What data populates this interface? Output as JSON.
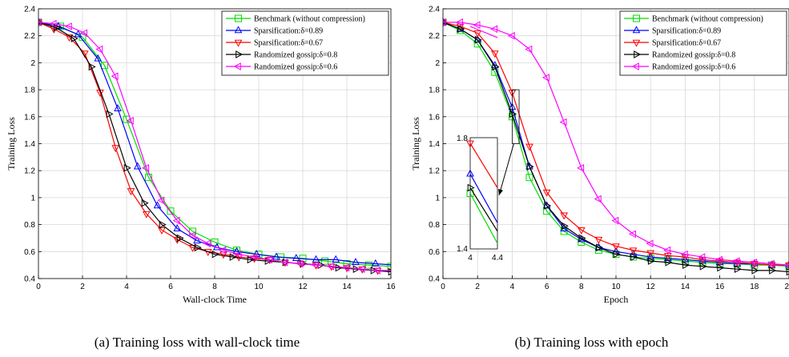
{
  "captions": {
    "a": "(a) Training loss with wall-clock time",
    "b": "(b) Training loss with epoch"
  },
  "chart_data": [
    {
      "type": "line",
      "xlabel": "Wall-clock Time",
      "ylabel": "Training Loss",
      "xlim": [
        0,
        16
      ],
      "ylim": [
        0.4,
        2.4
      ],
      "xticks": [
        0,
        2,
        4,
        6,
        8,
        10,
        12,
        14,
        16
      ],
      "yticks": [
        0.4,
        0.6,
        0.8,
        1,
        1.2,
        1.4,
        1.6,
        1.8,
        2,
        2.2,
        2.4
      ],
      "grid": true,
      "legend_position": "top-right",
      "series": [
        {
          "name": "Benchmark (without compression)",
          "color": "#00dd00",
          "marker": "square",
          "x": [
            0,
            1,
            2,
            3,
            4,
            5,
            6,
            7,
            8,
            9,
            10,
            11,
            12,
            13,
            14,
            15,
            16
          ],
          "y": [
            2.3,
            2.27,
            2.19,
            1.98,
            1.58,
            1.15,
            0.9,
            0.75,
            0.67,
            0.61,
            0.58,
            0.56,
            0.55,
            0.53,
            0.51,
            0.5,
            0.49
          ]
        },
        {
          "name": "Sparsification:δ=0.89",
          "color": "#0000ff",
          "marker": "triangle-up",
          "x": [
            0,
            0.9,
            1.8,
            2.7,
            3.6,
            4.5,
            5.4,
            6.3,
            7.2,
            8.1,
            9.0,
            9.9,
            10.8,
            11.7,
            12.6,
            13.5,
            14.4,
            15.3,
            16.2
          ],
          "y": [
            2.3,
            2.27,
            2.21,
            2.03,
            1.66,
            1.23,
            0.94,
            0.77,
            0.68,
            0.63,
            0.6,
            0.58,
            0.56,
            0.55,
            0.54,
            0.54,
            0.52,
            0.51,
            0.5
          ]
        },
        {
          "name": "Sparsification:δ=0.67",
          "color": "#ff0000",
          "marker": "triangle-down",
          "x": [
            0,
            0.7,
            1.4,
            2.1,
            2.8,
            3.5,
            4.2,
            4.9,
            5.6,
            6.3,
            7.0,
            7.7,
            8.4,
            9.1,
            9.8,
            10.5,
            11.2,
            11.9,
            12.6,
            13.3,
            14.0,
            14.7,
            15.4,
            16.1
          ],
          "y": [
            2.3,
            2.25,
            2.19,
            2.07,
            1.78,
            1.37,
            1.05,
            0.88,
            0.76,
            0.69,
            0.63,
            0.6,
            0.58,
            0.56,
            0.55,
            0.54,
            0.52,
            0.51,
            0.5,
            0.49,
            0.48,
            0.47,
            0.46,
            0.45
          ]
        },
        {
          "name": "Randomized gossip:δ=0.8",
          "color": "#000000",
          "marker": "triangle-right",
          "x": [
            0,
            0.8,
            1.6,
            2.4,
            3.2,
            4.0,
            4.8,
            5.6,
            6.4,
            7.2,
            8.0,
            8.8,
            9.6,
            10.4,
            11.2,
            12.0,
            12.8,
            13.6,
            14.4,
            15.2,
            16.0
          ],
          "y": [
            2.3,
            2.26,
            2.18,
            1.97,
            1.62,
            1.22,
            0.96,
            0.8,
            0.7,
            0.63,
            0.58,
            0.56,
            0.54,
            0.53,
            0.52,
            0.51,
            0.5,
            0.48,
            0.47,
            0.46,
            0.45
          ]
        },
        {
          "name": "Randomized gossip:δ=0.6",
          "color": "#ff00ff",
          "marker": "triangle-left",
          "x": [
            0,
            0.7,
            1.4,
            2.1,
            2.8,
            3.5,
            4.2,
            4.9,
            5.6,
            6.3,
            7.0,
            7.7,
            8.4,
            9.1,
            9.8,
            10.5,
            11.2,
            11.9,
            12.6,
            13.3,
            14.0,
            14.7,
            15.4,
            16.1
          ],
          "y": [
            2.3,
            2.29,
            2.27,
            2.22,
            2.1,
            1.9,
            1.57,
            1.22,
            0.98,
            0.83,
            0.72,
            0.66,
            0.61,
            0.58,
            0.56,
            0.54,
            0.52,
            0.51,
            0.5,
            0.49,
            0.48,
            0.47,
            0.46,
            0.46
          ]
        }
      ]
    },
    {
      "type": "line",
      "xlabel": "Epoch",
      "ylabel": "Training Loss",
      "xlim": [
        0,
        20
      ],
      "ylim": [
        0.4,
        2.4
      ],
      "xticks": [
        0,
        2,
        4,
        6,
        8,
        10,
        12,
        14,
        16,
        18,
        20
      ],
      "yticks": [
        0.4,
        0.6,
        0.8,
        1,
        1.2,
        1.4,
        1.6,
        1.8,
        2,
        2.2,
        2.4
      ],
      "grid": true,
      "legend_position": "top-right",
      "series": [
        {
          "name": "Benchmark (without compression)",
          "color": "#00dd00",
          "marker": "square",
          "x": [
            0,
            1,
            2,
            3,
            4,
            5,
            6,
            7,
            8,
            9,
            10,
            11,
            12,
            13,
            14,
            15,
            16,
            17,
            18,
            19,
            20
          ],
          "y": [
            2.3,
            2.24,
            2.14,
            1.93,
            1.6,
            1.15,
            0.9,
            0.75,
            0.67,
            0.61,
            0.58,
            0.56,
            0.55,
            0.54,
            0.53,
            0.52,
            0.51,
            0.51,
            0.5,
            0.5,
            0.49
          ]
        },
        {
          "name": "Sparsification:δ=0.89",
          "color": "#0000ff",
          "marker": "triangle-up",
          "x": [
            0,
            1,
            2,
            3,
            4,
            5,
            6,
            7,
            8,
            9,
            10,
            11,
            12,
            13,
            14,
            15,
            16,
            17,
            18,
            19,
            20
          ],
          "y": [
            2.3,
            2.25,
            2.17,
            1.98,
            1.67,
            1.23,
            0.94,
            0.77,
            0.69,
            0.63,
            0.6,
            0.58,
            0.56,
            0.55,
            0.54,
            0.53,
            0.52,
            0.51,
            0.51,
            0.5,
            0.5
          ]
        },
        {
          "name": "Sparsification:δ=0.67",
          "color": "#ff0000",
          "marker": "triangle-down",
          "x": [
            0,
            1,
            2,
            3,
            4,
            5,
            6,
            7,
            8,
            9,
            10,
            11,
            12,
            13,
            14,
            15,
            16,
            17,
            18,
            19,
            20
          ],
          "y": [
            2.3,
            2.27,
            2.22,
            2.07,
            1.78,
            1.38,
            1.04,
            0.87,
            0.76,
            0.69,
            0.64,
            0.61,
            0.59,
            0.57,
            0.56,
            0.54,
            0.53,
            0.52,
            0.51,
            0.5,
            0.5
          ]
        },
        {
          "name": "Randomized gossip:δ=0.8",
          "color": "#000000",
          "marker": "triangle-right",
          "x": [
            0,
            1,
            2,
            3,
            4,
            5,
            6,
            7,
            8,
            9,
            10,
            11,
            12,
            13,
            14,
            15,
            16,
            17,
            18,
            19,
            20
          ],
          "y": [
            2.3,
            2.25,
            2.17,
            1.97,
            1.62,
            1.23,
            0.94,
            0.79,
            0.7,
            0.63,
            0.58,
            0.56,
            0.53,
            0.52,
            0.5,
            0.49,
            0.48,
            0.47,
            0.46,
            0.46,
            0.45
          ]
        },
        {
          "name": "Randomized gossip:δ=0.6",
          "color": "#ff00ff",
          "marker": "triangle-left",
          "x": [
            0,
            1,
            2,
            3,
            4,
            5,
            6,
            7,
            8,
            9,
            10,
            11,
            12,
            13,
            14,
            15,
            16,
            17,
            18,
            19,
            20
          ],
          "y": [
            2.3,
            2.3,
            2.28,
            2.25,
            2.2,
            2.1,
            1.89,
            1.56,
            1.22,
            0.99,
            0.83,
            0.73,
            0.66,
            0.61,
            0.58,
            0.56,
            0.54,
            0.53,
            0.52,
            0.51,
            0.5
          ]
        }
      ],
      "inset": {
        "xlim": [
          4,
          4.4
        ],
        "ylim": [
          1.4,
          1.8
        ],
        "x_tick_labels": [
          "4",
          "4.4"
        ],
        "y_tick_labels": [
          "1.4",
          "1.8"
        ]
      }
    }
  ]
}
